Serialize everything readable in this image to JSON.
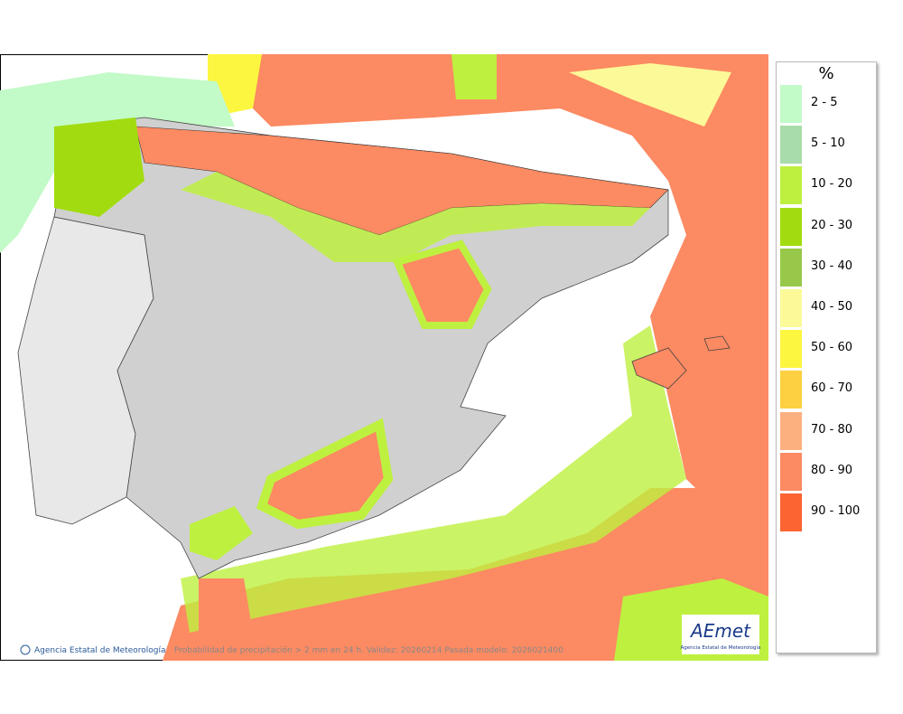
{
  "legend": {
    "title": "%",
    "items": [
      {
        "label": "2 - 5",
        "color": "#c2fac8"
      },
      {
        "label": "5 - 10",
        "color": "#a8dcaa"
      },
      {
        "label": "10 - 20",
        "color": "#bef040"
      },
      {
        "label": "20 - 30",
        "color": "#a2dc10"
      },
      {
        "label": "30 - 40",
        "color": "#98c84a"
      },
      {
        "label": "40 - 50",
        "color": "#fcfa98"
      },
      {
        "label": "50 - 60",
        "color": "#fcf640"
      },
      {
        "label": "60 - 70",
        "color": "#fcd040"
      },
      {
        "label": "70 - 80",
        "color": "#fcb080"
      },
      {
        "label": "80 - 90",
        "color": "#fc8a62"
      },
      {
        "label": "90 - 100",
        "color": "#fc6432"
      }
    ]
  },
  "footer": {
    "copyright": "Agencia Estatal de Meteorología",
    "caption": "Probabilidad de precipitación > 2 mm en 24 h. Validez: 20260214 Pasada modelo: 2026021400"
  },
  "logo": {
    "name": "AEmet",
    "subtitle": "Agencia Estatal de Meteorología"
  }
}
